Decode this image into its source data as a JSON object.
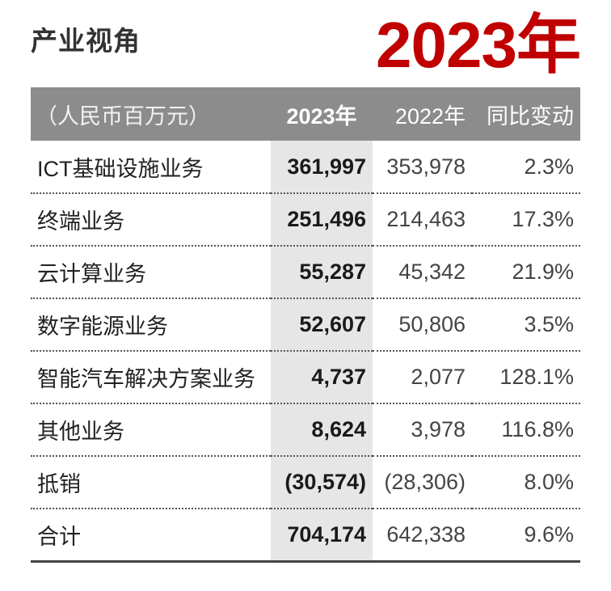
{
  "header": {
    "title": "产业视角",
    "year": "2023年"
  },
  "table": {
    "columns": [
      "（人民币百万元）",
      "2023年",
      "2022年",
      "同比变动"
    ],
    "rows": [
      {
        "name": "ICT基础设施业务",
        "v2023": "361,997",
        "v2022": "353,978",
        "change": "2.3%"
      },
      {
        "name": "终端业务",
        "v2023": "251,496",
        "v2022": "214,463",
        "change": "17.3%"
      },
      {
        "name": "云计算业务",
        "v2023": "55,287",
        "v2022": "45,342",
        "change": "21.9%"
      },
      {
        "name": "数字能源业务",
        "v2023": "52,607",
        "v2022": "50,806",
        "change": "3.5%"
      },
      {
        "name": "智能汽车解决方案业务",
        "v2023": "4,737",
        "v2022": "2,077",
        "change": "128.1%"
      },
      {
        "name": "其他业务",
        "v2023": "8,624",
        "v2022": "3,978",
        "change": "116.8%"
      },
      {
        "name": "抵销",
        "v2023": "(30,574)",
        "v2022": "(28,306)",
        "change": "8.0%"
      },
      {
        "name": "合计",
        "v2023": "704,174",
        "v2022": "642,338",
        "change": "9.6%"
      }
    ]
  },
  "colors": {
    "header_bg": "#8c8c8c",
    "highlight_col": "#e6e6e6",
    "year_red": "#c00000"
  }
}
